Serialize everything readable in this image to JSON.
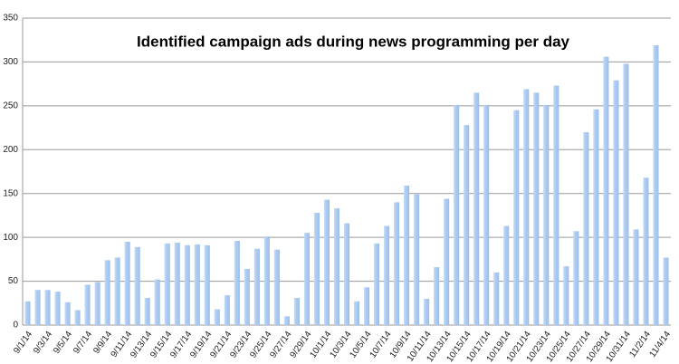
{
  "chart_data": {
    "type": "bar",
    "title": "Identified campaign ads during news programming per day",
    "categories": [
      "9/1/14",
      null,
      "9/3/14",
      null,
      "9/5/14",
      null,
      "9/7/14",
      null,
      "9/9/14",
      null,
      "9/11/14",
      null,
      "9/13/14",
      null,
      "9/15/14",
      null,
      "9/17/14",
      null,
      "9/19/14",
      null,
      "9/21/14",
      null,
      "9/23/14",
      null,
      "9/25/14",
      null,
      "9/27/14",
      null,
      "9/29/14",
      null,
      "10/1/14",
      null,
      "10/3/14",
      null,
      "10/5/14",
      null,
      "10/7/14",
      null,
      "10/9/14",
      null,
      "10/11/14",
      null,
      "10/13/14",
      null,
      "10/15/14",
      null,
      "10/17/14",
      null,
      "10/19/14",
      null,
      "10/21/14",
      null,
      "10/23/14",
      null,
      "10/25/14",
      null,
      "10/27/14",
      null,
      "10/29/14",
      null,
      "10/31/14",
      null,
      "11/2/14",
      null,
      "11/4/14"
    ],
    "values": [
      27,
      40,
      40,
      38,
      26,
      17,
      46,
      49,
      74,
      77,
      95,
      89,
      31,
      52,
      93,
      94,
      91,
      92,
      91,
      18,
      34,
      96,
      64,
      87,
      101,
      86,
      10,
      31,
      105,
      128,
      143,
      133,
      116,
      27,
      43,
      93,
      113,
      140,
      159,
      149,
      30,
      66,
      144,
      251,
      228,
      265,
      251,
      60,
      113,
      245,
      269,
      265,
      251,
      273,
      67,
      107,
      220,
      246,
      306,
      279,
      298,
      109,
      168,
      319,
      77
    ],
    "color": "#a6c8f2",
    "ylim": [
      0,
      350
    ],
    "yticks": [
      0,
      50,
      100,
      150,
      200,
      250,
      300,
      350
    ],
    "grid": true
  }
}
